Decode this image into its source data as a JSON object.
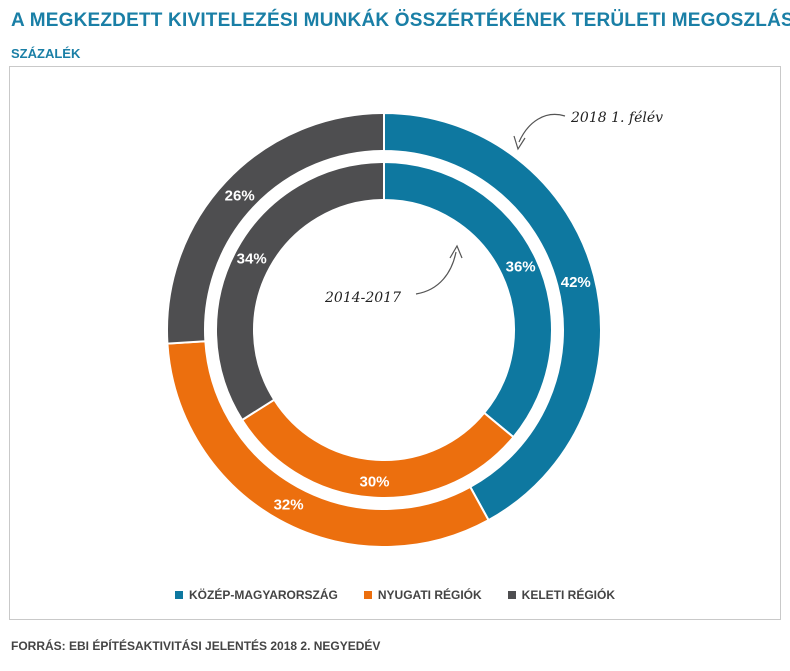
{
  "title": "A MEGKEZDETT KIVITELEZÉSI MUNKÁK ÖSSZÉRTÉKÉNEK TERÜLETI MEGOSZLÁSA",
  "subtitle": "SZÁZALÉK",
  "source": "FORRÁS: EBI ÉPÍTÉSAKTIVITÁSI JELENTÉS 2018 2. NEGYEDÉV",
  "chart_data": {
    "type": "pie",
    "title": "A MEGKEZDETT KIVITELEZÉSI MUNKÁK ÖSSZÉRTÉKÉNEK TERÜLETI MEGOSZLÁSA",
    "unit": "SZÁZALÉK",
    "categories": [
      "KÖZÉP-MAGYARORSZÁG",
      "NYUGATI RÉGIÓK",
      "KELETI RÉGIÓK"
    ],
    "colors": [
      "#0e78a0",
      "#ec6f0e",
      "#4e4e50"
    ],
    "series": [
      {
        "name": "2018 1. félév",
        "values": [
          42,
          32,
          26
        ],
        "labels": [
          "42%",
          "32%",
          "26%"
        ]
      },
      {
        "name": "2014-2017",
        "values": [
          36,
          30,
          34
        ],
        "labels": [
          "36%",
          "30%",
          "34%"
        ]
      }
    ],
    "annotations": [
      "2018 1. félév",
      "2014-2017"
    ],
    "legend_position": "bottom"
  },
  "legend": [
    {
      "label": "KÖZÉP-MAGYARORSZÁG",
      "color": "#0e78a0"
    },
    {
      "label": "NYUGATI RÉGIÓK",
      "color": "#ec6f0e"
    },
    {
      "label": "KELETI RÉGIÓK",
      "color": "#4e4e50"
    }
  ]
}
